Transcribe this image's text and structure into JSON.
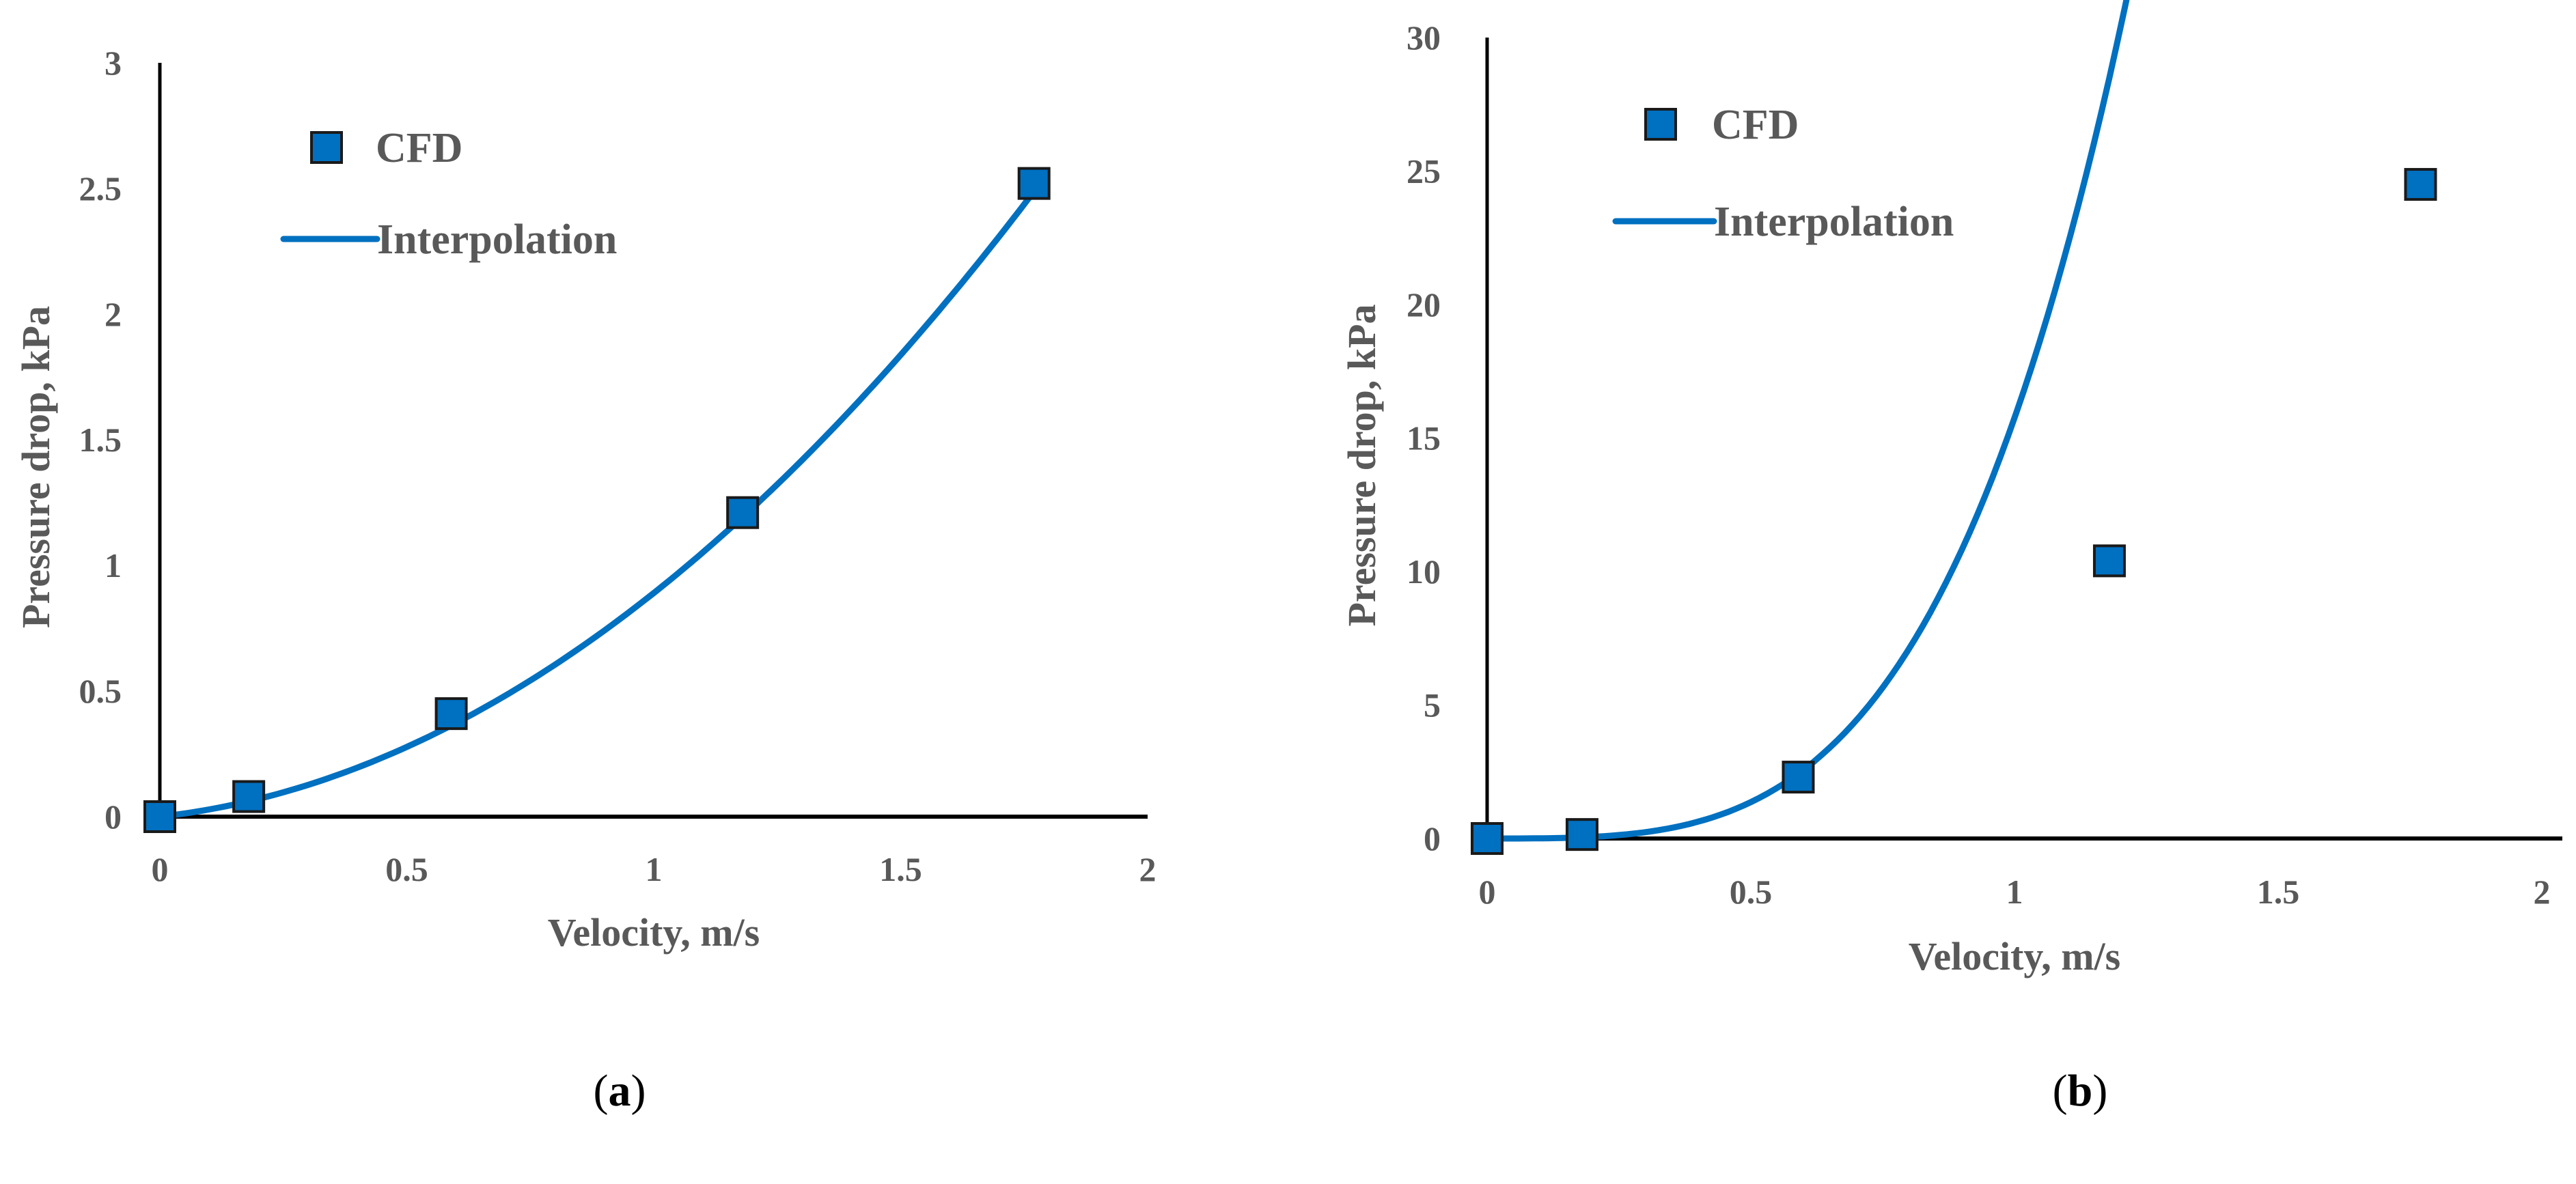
{
  "colors": {
    "series": "#0070c0",
    "axis": "#000000",
    "text": "#595959",
    "marker_edge": "#1a1a1a"
  },
  "chart_data": [
    {
      "type": "scatter",
      "panel_label": "a",
      "xlabel": "Velocity, m/s",
      "ylabel": "Pressure drop, kPa",
      "xlim": [
        0,
        2
      ],
      "ylim": [
        0,
        3
      ],
      "xticks": [
        "0",
        "0.5",
        "1",
        "1.5",
        "2"
      ],
      "yticks": [
        "0",
        "0.5",
        "1",
        "1.5",
        "2",
        "2.5",
        "3"
      ],
      "legend": {
        "placement": "top-left",
        "marker_label": "CFD",
        "line_label": "Interpolation"
      },
      "series": [
        {
          "name": "CFD",
          "kind": "markers",
          "x": [
            0,
            0.18,
            0.59,
            1.18,
            1.77
          ],
          "y": [
            0,
            0.08,
            0.41,
            1.21,
            2.52
          ]
        },
        {
          "name": "Interpolation",
          "kind": "curve",
          "coefficients": [
            0.0,
            0.22,
            0.67
          ],
          "x_range": [
            0,
            1.77
          ]
        }
      ]
    },
    {
      "type": "scatter",
      "panel_label": "b",
      "xlabel": "Velocity, m/s",
      "ylabel": "Pressure drop, kPa",
      "xlim": [
        0,
        2
      ],
      "ylim": [
        0,
        30
      ],
      "xticks": [
        "0",
        "0.5",
        "1",
        "1.5",
        "2"
      ],
      "yticks": [
        "0",
        "5",
        "10",
        "15",
        "20",
        "25",
        "30"
      ],
      "legend": {
        "placement": "top-left",
        "marker_label": "CFD",
        "line_label": "Interpolation"
      },
      "series": [
        {
          "name": "CFD",
          "kind": "markers",
          "x": [
            0,
            0.18,
            0.59,
            1.18,
            1.77
          ],
          "y": [
            0,
            0.15,
            2.3,
            10.4,
            24.5
          ]
        },
        {
          "name": "Interpolation",
          "kind": "curve",
          "coefficients": [
            0.0,
            0.0,
            0.0,
            5.4,
            11.6,
            -1.25
          ],
          "x_range": [
            0,
            1.77
          ]
        }
      ]
    }
  ],
  "captions": [
    "a",
    "b"
  ]
}
